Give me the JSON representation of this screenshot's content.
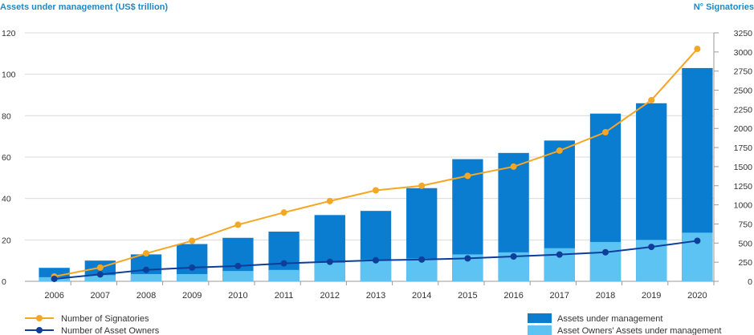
{
  "chart_data": {
    "type": "bar",
    "title": "",
    "ylabel_left": "Assets under management (US$ trillion)",
    "ylabel_right": "N° Signatories",
    "categories": [
      "2006",
      "2007",
      "2008",
      "2009",
      "2010",
      "2011",
      "2012",
      "2013",
      "2014",
      "2015",
      "2016",
      "2017",
      "2018",
      "2019",
      "2020"
    ],
    "ylim_left": [
      0,
      120
    ],
    "yticks_left": [
      0,
      20,
      40,
      60,
      80,
      100,
      120
    ],
    "ylim_right": [
      0,
      3250
    ],
    "yticks_right": [
      0,
      250,
      500,
      750,
      1000,
      1250,
      1500,
      1750,
      2000,
      2250,
      2500,
      2750,
      3000,
      3250
    ],
    "grid": true,
    "legend_position": "bottom",
    "series": [
      {
        "name": "Assets under management",
        "kind": "bar",
        "axis": "left",
        "color": "#0a7dd0",
        "values": [
          6.5,
          10,
          13,
          18,
          21,
          24,
          32,
          34,
          45,
          59,
          62,
          68,
          81,
          86,
          103
        ]
      },
      {
        "name": "Asset Owners' Assets under management",
        "kind": "bar-overlay",
        "axis": "left",
        "color": "#5cc3f3",
        "values": [
          2,
          3,
          3.5,
          3.5,
          5,
          5.5,
          9,
          10.5,
          11,
          13,
          14,
          16,
          19,
          20,
          23.5
        ]
      },
      {
        "name": "Number of Signatories",
        "kind": "line",
        "axis": "right",
        "color": "#f5a623",
        "values": [
          63,
          180,
          365,
          530,
          740,
          900,
          1050,
          1190,
          1250,
          1380,
          1500,
          1710,
          1950,
          2370,
          3040
        ]
      },
      {
        "name": "Number of Asset Owners",
        "kind": "line",
        "axis": "right",
        "color": "#0d3e9a",
        "values": [
          32,
          90,
          150,
          180,
          200,
          235,
          255,
          275,
          285,
          300,
          325,
          350,
          380,
          450,
          530
        ]
      }
    ]
  }
}
